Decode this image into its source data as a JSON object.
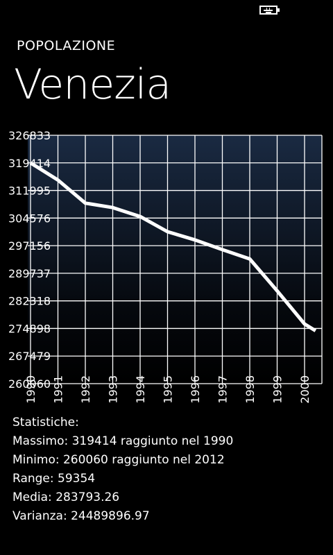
{
  "app": {
    "title": "POPOLAZIONE",
    "page_title": "Venezia"
  },
  "status_bar": {
    "icon": "battery-charging-icon"
  },
  "colors": {
    "background": "#000000",
    "plot_top": "#1a2a42",
    "plot_bottom": "#000000",
    "grid": "#ffffff",
    "line": "#ffffff",
    "text": "#ffffff"
  },
  "chart_data": {
    "type": "line",
    "title": "",
    "xlabel": "",
    "ylabel": "",
    "x_ticks": [
      "1990",
      "1991",
      "1992",
      "1993",
      "1994",
      "1995",
      "1996",
      "1997",
      "1998",
      "1999",
      "2000"
    ],
    "y_ticks": [
      "260060",
      "267479",
      "274898",
      "282318",
      "289737",
      "297156",
      "304576",
      "311995",
      "319414",
      "326833"
    ],
    "ylim": [
      260060,
      326833
    ],
    "grid": true,
    "series": [
      {
        "x": [
          1990,
          1991,
          1992,
          1993,
          1994,
          1995,
          1996,
          1997,
          1998,
          1999,
          2000,
          2000.4
        ],
        "values": [
          319414,
          314800,
          308600,
          307400,
          305000,
          300900,
          298700,
          296100,
          293600,
          285000,
          276100,
          274300
        ]
      }
    ]
  },
  "stats": {
    "heading": "Statistiche:",
    "max": "Massimo: 319414 raggiunto nel 1990",
    "min": "Minimo: 260060 raggiunto nel 2012",
    "range": "Range: 59354",
    "mean": "Media: 283793.26",
    "variance": "Varianza: 24489896.97"
  }
}
